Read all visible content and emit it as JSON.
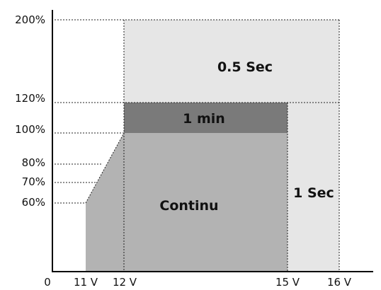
{
  "y_axis": {
    "ticks": [
      "200%",
      "120%",
      "100%",
      "80%",
      "70%",
      "60%"
    ]
  },
  "x_axis": {
    "ticks": [
      "0",
      "11 V",
      "12 V",
      "15 V",
      "16 V"
    ]
  },
  "regions": {
    "half_second": {
      "label": "0.5 Sec",
      "color": "#e6e6e6"
    },
    "one_second": {
      "label": "1 Sec",
      "color": "#e6e6e6"
    },
    "one_minute": {
      "label": "1 min",
      "color": "#7a7a7a"
    },
    "continuous": {
      "label": "Continu",
      "color": "#b3b3b3"
    }
  }
}
